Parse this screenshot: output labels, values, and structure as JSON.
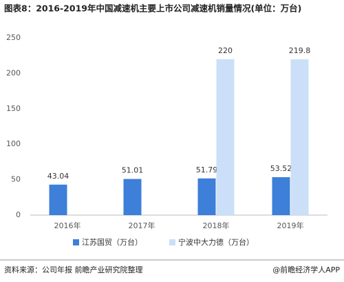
{
  "chart_data": {
    "type": "bar",
    "title": "图表8：2016-2019年中国减速机主要上市公司减速机销量情况(单位：万台)",
    "categories": [
      "2016年",
      "2017年",
      "2018年",
      "2019年"
    ],
    "series": [
      {
        "name": "江苏国贸（万台）",
        "color": "#3d7fd9",
        "values": [
          43.04,
          51.01,
          51.79,
          53.52
        ]
      },
      {
        "name": "宁波中大力德（万台）",
        "color": "#cbdff8",
        "values": [
          null,
          null,
          220,
          219.8
        ]
      }
    ],
    "ylim": [
      0,
      250
    ],
    "yticks": [
      0,
      50,
      100,
      150,
      200,
      250
    ],
    "grid": false,
    "legend": "bottom",
    "source": "资料来源：公司年报 前瞻产业研究院整理",
    "brand": "@前瞻经济学人APP"
  }
}
